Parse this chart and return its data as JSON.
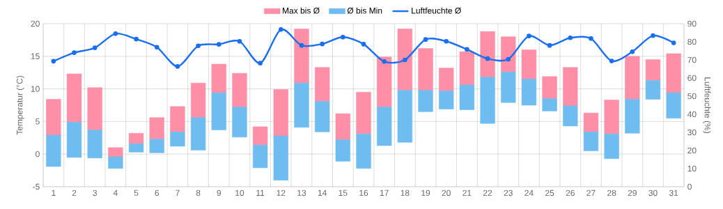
{
  "chart_data": {
    "type": "bar",
    "ylabel": "Temperatur (°C)",
    "y2label": "Luftfeuchte (%)",
    "categories": [
      "1",
      "2",
      "3",
      "4",
      "5",
      "6",
      "7",
      "8",
      "9",
      "10",
      "11",
      "12",
      "13",
      "14",
      "15",
      "16",
      "17",
      "18",
      "19",
      "20",
      "21",
      "22",
      "23",
      "24",
      "25",
      "26",
      "27",
      "28",
      "29",
      "30",
      "31"
    ],
    "series": [
      {
        "name": "Max bis Ø",
        "color": "#ff8fa7",
        "base": [
          2.9,
          4.9,
          3.7,
          -0.4,
          1.6,
          2.3,
          3.4,
          5.6,
          9.4,
          7.2,
          1.4,
          2.8,
          10.9,
          8.1,
          2.2,
          3.1,
          7.2,
          9.8,
          9.8,
          9.7,
          10.6,
          11.8,
          12.6,
          11.5,
          8.5,
          7.4,
          3.4,
          3.1,
          8.4,
          11.3,
          9.4
        ],
        "values": [
          5.5,
          7.4,
          6.5,
          1.4,
          1.6,
          3.3,
          3.9,
          5.3,
          4.4,
          5.2,
          2.8,
          7.1,
          8.3,
          5.2,
          4.0,
          6.4,
          7.7,
          9.4,
          6.4,
          3.5,
          5.1,
          7.0,
          5.4,
          4.5,
          3.4,
          5.9,
          2.9,
          5.2,
          6.6,
          3.2,
          6.0
        ]
      },
      {
        "name": "Ø bis Min",
        "color": "#6ebcf0",
        "base": [
          -1.9,
          -0.5,
          -0.6,
          -2.2,
          0.3,
          0.2,
          1.2,
          0.6,
          3.7,
          2.6,
          -2.1,
          -4.0,
          4.1,
          3.4,
          -1.1,
          -2.2,
          1.3,
          1.8,
          6.5,
          6.9,
          6.8,
          4.7,
          7.9,
          7.5,
          6.6,
          4.3,
          0.5,
          -0.7,
          3.2,
          8.4,
          5.5
        ],
        "values": [
          4.8,
          5.4,
          4.3,
          1.8,
          1.3,
          2.1,
          2.2,
          5.0,
          5.7,
          4.6,
          3.5,
          6.8,
          6.8,
          4.7,
          3.3,
          5.3,
          5.9,
          8.0,
          3.3,
          2.8,
          3.8,
          7.1,
          4.7,
          4.0,
          1.9,
          3.1,
          2.9,
          3.8,
          5.2,
          2.9,
          3.9
        ]
      },
      {
        "name": "Luftfeuchte Ø",
        "type": "line",
        "axis": "y2",
        "color": "#1a6ff0",
        "marker": "circle",
        "values": [
          69.3,
          74.0,
          76.7,
          84.5,
          81.5,
          77.0,
          66.4,
          77.8,
          78.6,
          80.3,
          68.2,
          86.8,
          78.0,
          78.8,
          82.6,
          78.7,
          69.1,
          70.0,
          81.3,
          80.3,
          75.8,
          70.7,
          70.4,
          83.2,
          78.0,
          82.2,
          81.8,
          69.4,
          74.5,
          83.4,
          79.4
        ]
      }
    ],
    "ylim": [
      -5,
      20
    ],
    "yticks": [
      -5,
      0,
      5,
      10,
      15,
      20
    ],
    "y2lim": [
      0,
      90
    ],
    "y2ticks": [
      0,
      10,
      20,
      30,
      40,
      50,
      60,
      70,
      80,
      90
    ],
    "grid": true,
    "legend": "top"
  }
}
